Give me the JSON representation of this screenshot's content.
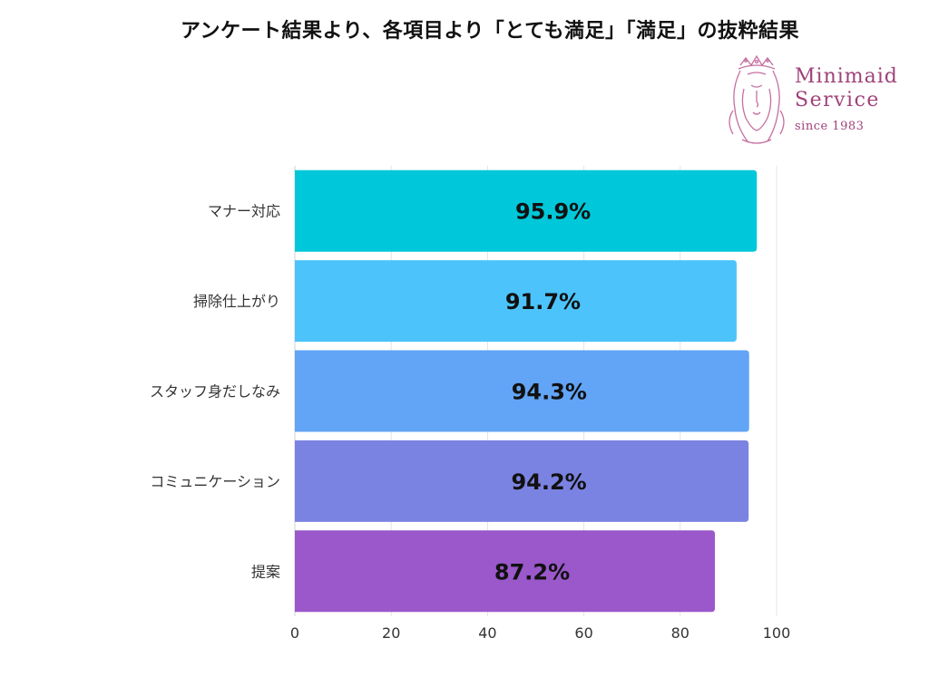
{
  "header": {
    "title": "アンケート結果より、各項目より「とても満足」「満足」の抜粋結果"
  },
  "logo": {
    "line1": "Minimaid",
    "line2": "Service",
    "line3": "since 1983",
    "color": "#a0427a"
  },
  "chart_data": {
    "type": "bar",
    "orientation": "horizontal",
    "categories": [
      "マナー対応",
      "掃除仕上がり",
      "スタッフ身だしなみ",
      "コミュニケーション",
      "提案"
    ],
    "values": [
      95.9,
      91.7,
      94.3,
      94.2,
      87.2
    ],
    "value_labels": [
      "95.9%",
      "91.7%",
      "94.3%",
      "94.2%",
      "87.2%"
    ],
    "colors": [
      "#00c8da",
      "#4cc4fb",
      "#62a4f6",
      "#7b83e2",
      "#9a58cb"
    ],
    "xlim": [
      0,
      100
    ],
    "xticks": [
      0,
      20,
      40,
      60,
      80,
      100
    ],
    "xlabel": "",
    "ylabel": "",
    "grid": true,
    "legend": "none"
  }
}
